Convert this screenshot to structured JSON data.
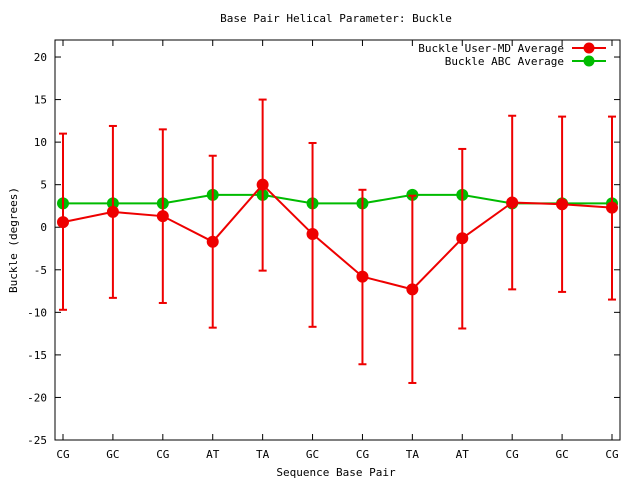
{
  "chart_data": {
    "type": "line",
    "title": "Base Pair Helical Parameter: Buckle",
    "xlabel": "Sequence Base Pair",
    "ylabel": "Buckle (degrees)",
    "categories": [
      "CG",
      "GC",
      "CG",
      "AT",
      "TA",
      "GC",
      "CG",
      "TA",
      "AT",
      "CG",
      "GC",
      "CG"
    ],
    "ylim": [
      -25,
      22
    ],
    "yticks": [
      -25,
      -20,
      -15,
      -10,
      -5,
      0,
      5,
      10,
      15,
      20
    ],
    "legend_position": "top-right",
    "grid": false,
    "series": [
      {
        "name": "Buckle User-MD Average",
        "color": "#ee0000",
        "marker": "circle",
        "values": [
          0.6,
          1.8,
          1.3,
          -1.7,
          5.0,
          -0.8,
          -5.8,
          -7.3,
          -1.3,
          2.9,
          2.7,
          2.3
        ],
        "err_low": [
          -9.7,
          -8.3,
          -8.9,
          -11.8,
          -5.1,
          -11.7,
          -16.1,
          -18.3,
          -11.9,
          -7.3,
          -7.6,
          -8.5
        ],
        "err_high": [
          11.0,
          11.9,
          11.5,
          8.4,
          15.0,
          9.9,
          4.4,
          3.7,
          9.2,
          13.1,
          13.0,
          13.0
        ]
      },
      {
        "name": "Buckle ABC Average",
        "color": "#00bb00",
        "marker": "circle",
        "values": [
          2.8,
          2.8,
          2.8,
          3.8,
          3.8,
          2.8,
          2.8,
          3.8,
          3.8,
          2.8,
          2.8,
          2.8
        ]
      }
    ]
  }
}
